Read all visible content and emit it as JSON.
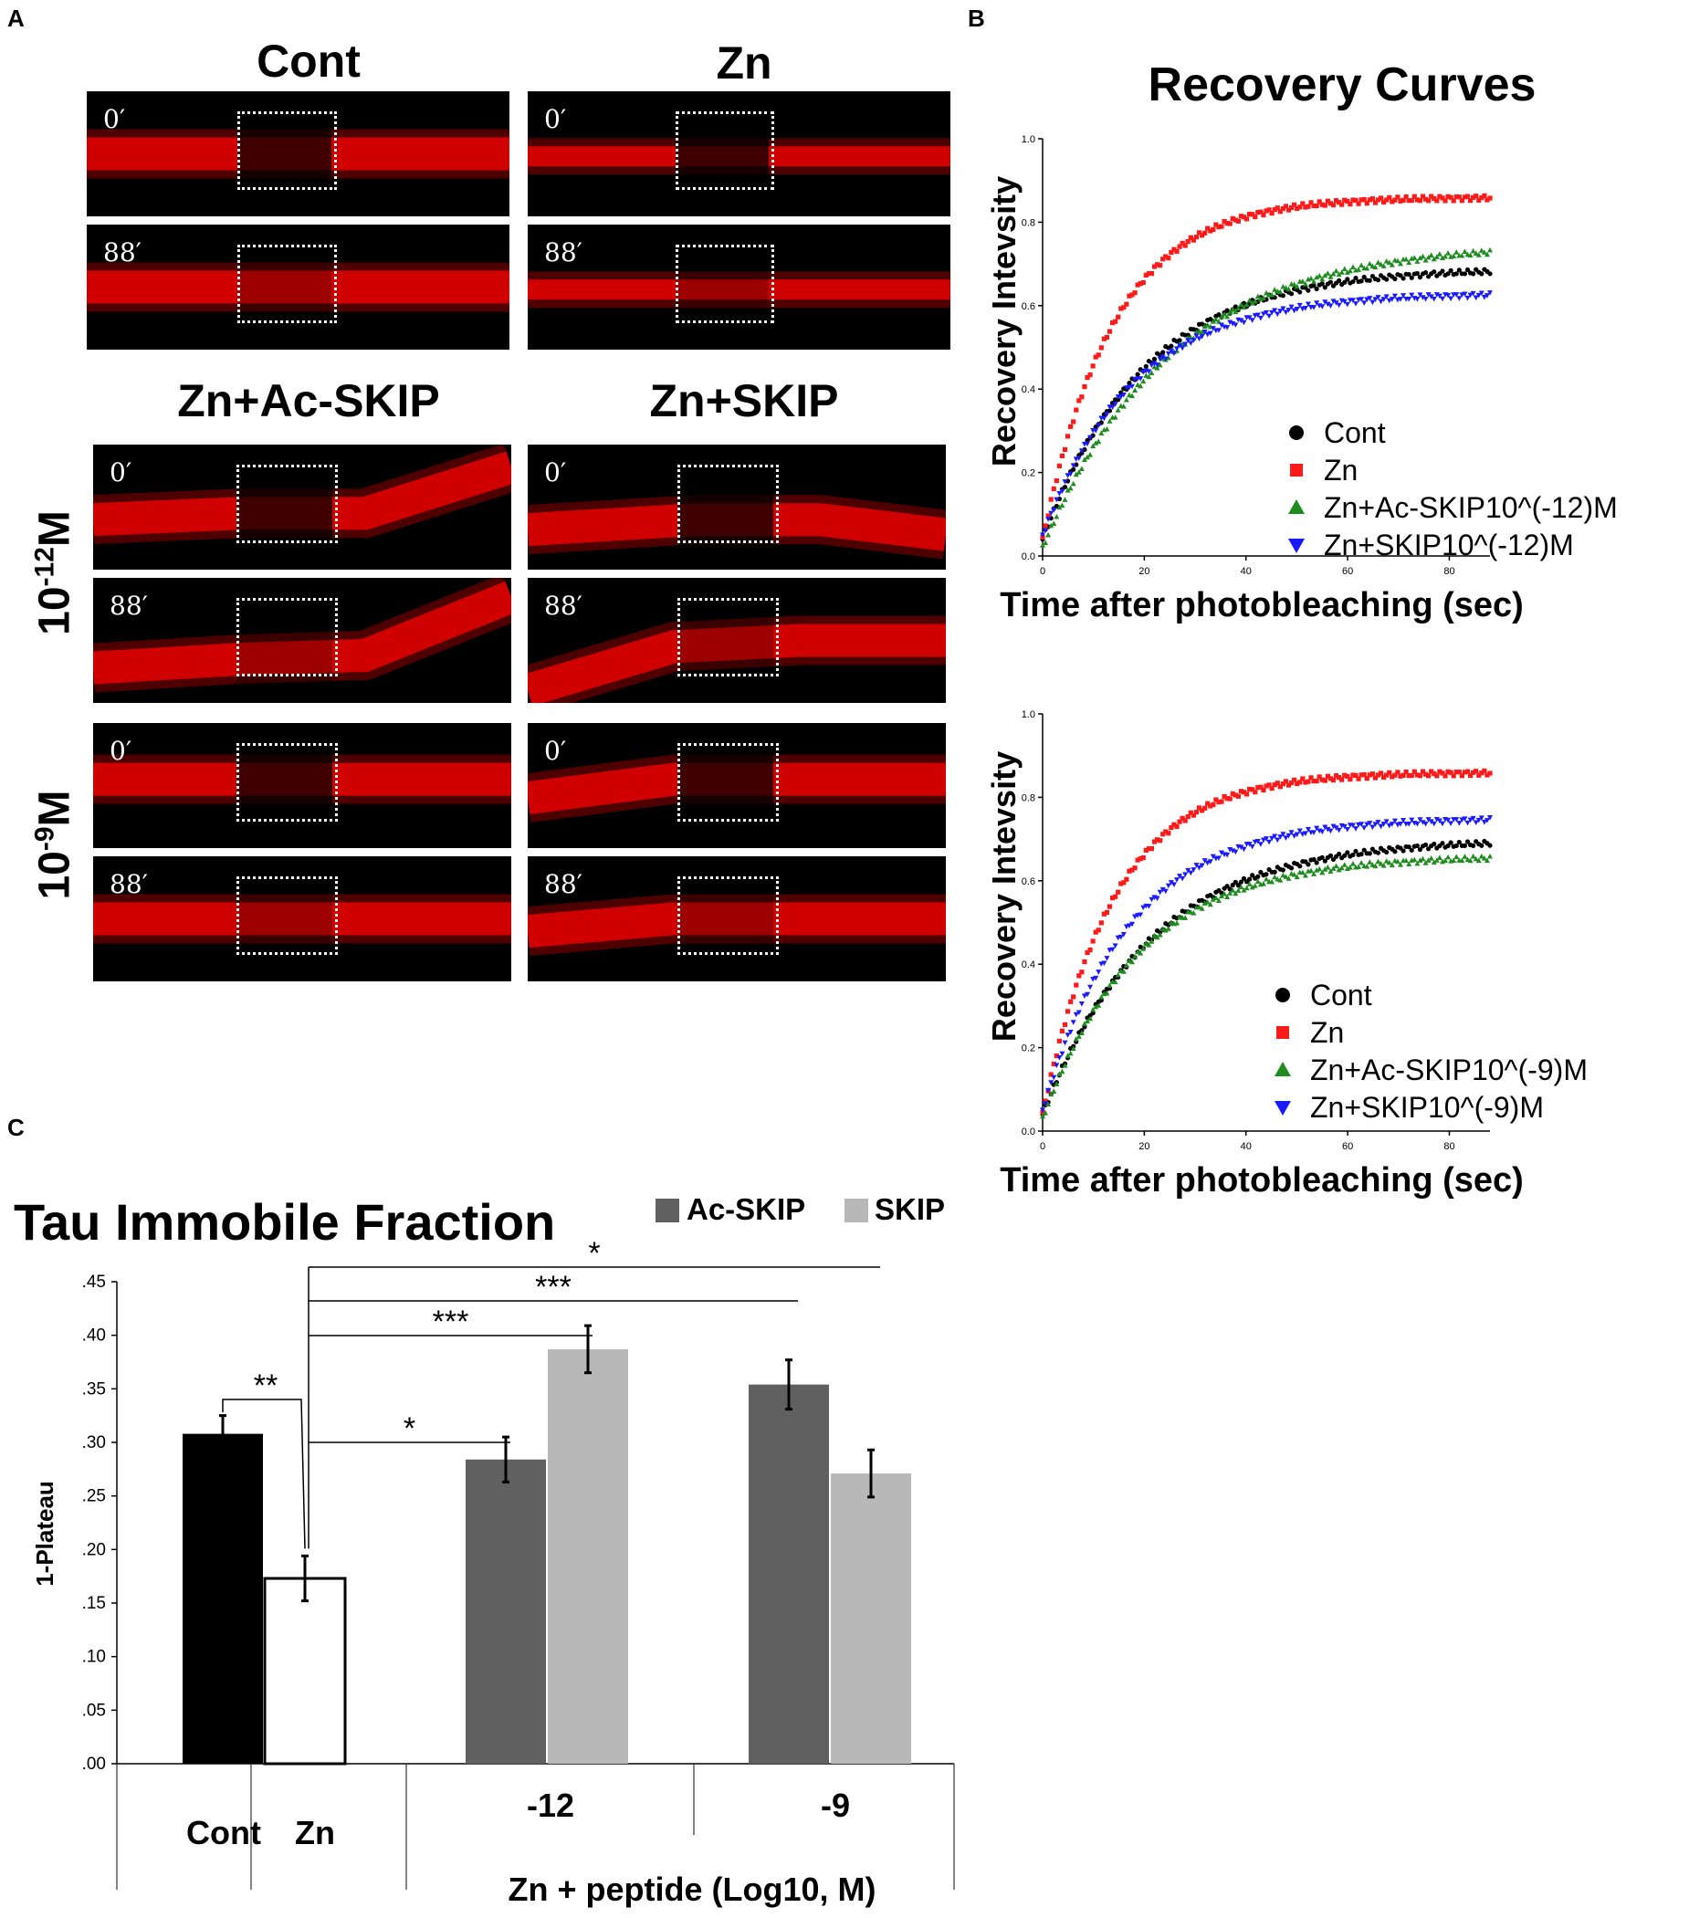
{
  "panels": {
    "a": "A",
    "b": "B",
    "c": "C"
  },
  "micrographs": {
    "columns": [
      "Cont",
      "Zn",
      "Zn+Ac-SKIP",
      "Zn+SKIP"
    ],
    "concentrations": [
      {
        "base": "10",
        "exp": "-12",
        "unit": "M"
      },
      {
        "base": "10",
        "exp": "-9",
        "unit": "M"
      }
    ],
    "timepoints": [
      "0′",
      "88′"
    ]
  },
  "colors": {
    "cont": "#000000",
    "zn": "#ff1a1a",
    "ac": "#1f8c1f",
    "skip": "#1a1aff",
    "acbar": "#606060",
    "skipbar": "#b8b8b8",
    "fluor": "#e00000"
  },
  "chart_data": [
    {
      "type": "scatter",
      "title": "Recovery Curves",
      "xlabel": "Time after photobleaching (sec)",
      "ylabel": "Recovery Intevsity",
      "xlim": [
        0,
        88
      ],
      "ylim": [
        0,
        1.0
      ],
      "xticks": [
        "0",
        "20",
        "40",
        "60",
        "80"
      ],
      "yticks": [
        "0.0",
        "0.2",
        "0.4",
        "0.6",
        "0.8",
        "1.0"
      ],
      "series": [
        {
          "name": "Cont",
          "marker": "circle",
          "plateau": 0.69,
          "tau": 20,
          "y0": 0.04
        },
        {
          "name": "Zn",
          "marker": "square",
          "plateau": 0.86,
          "tau": 14,
          "y0": 0.04
        },
        {
          "name": "Zn+Ac-SKIP10^(-12)M",
          "marker": "triangle-up",
          "plateau": 0.75,
          "tau": 25,
          "y0": 0.02
        },
        {
          "name": "Zn+SKIP10^(-12)M",
          "marker": "triangle-down",
          "plateau": 0.63,
          "tau": 18,
          "y0": 0.05
        }
      ]
    },
    {
      "type": "scatter",
      "title": "",
      "xlabel": "Time after photobleaching (sec)",
      "ylabel": "Recovery Intevsity",
      "xlim": [
        0,
        88
      ],
      "ylim": [
        0,
        1.0
      ],
      "xticks": [
        "0",
        "20",
        "40",
        "60",
        "80"
      ],
      "yticks": [
        "0.0",
        "0.2",
        "0.4",
        "0.6",
        "0.8",
        "1.0"
      ],
      "series": [
        {
          "name": "Cont",
          "marker": "circle",
          "plateau": 0.7,
          "tau": 21,
          "y0": 0.04
        },
        {
          "name": "Zn",
          "marker": "square",
          "plateau": 0.86,
          "tau": 14,
          "y0": 0.04
        },
        {
          "name": "Zn+Ac-SKIP10^(-9)M",
          "marker": "triangle-up",
          "plateau": 0.66,
          "tau": 19,
          "y0": 0.03
        },
        {
          "name": "Zn+SKIP10^(-9)M",
          "marker": "triangle-down",
          "plateau": 0.75,
          "tau": 17,
          "y0": 0.05
        }
      ]
    },
    {
      "type": "bar",
      "title": "Tau Immobile Fraction",
      "ylabel": "1-Plateau",
      "xlabel": "Zn + peptide (Log10, M)",
      "ylim": [
        0,
        0.45
      ],
      "yticks": [
        ".00",
        ".05",
        ".10",
        ".15",
        ".20",
        ".25",
        ".30",
        ".35",
        ".40",
        ".45"
      ],
      "legend": [
        "Ac-SKIP",
        "SKIP"
      ],
      "groups": [
        "Cont",
        "Zn",
        "-12",
        "-9"
      ],
      "bars": [
        {
          "group": "Cont",
          "series": "Cont",
          "value": 0.308,
          "err": 0.017
        },
        {
          "group": "Zn",
          "series": "Zn",
          "value": 0.173,
          "err": 0.021
        },
        {
          "group": "-12",
          "series": "Ac-SKIP",
          "value": 0.284,
          "err": 0.021
        },
        {
          "group": "-12",
          "series": "SKIP",
          "value": 0.387,
          "err": 0.022
        },
        {
          "group": "-9",
          "series": "Ac-SKIP",
          "value": 0.354,
          "err": 0.023
        },
        {
          "group": "-9",
          "series": "SKIP",
          "value": 0.271,
          "err": 0.022
        }
      ],
      "significance": [
        "**",
        "*",
        "***",
        "***",
        "*"
      ]
    }
  ]
}
